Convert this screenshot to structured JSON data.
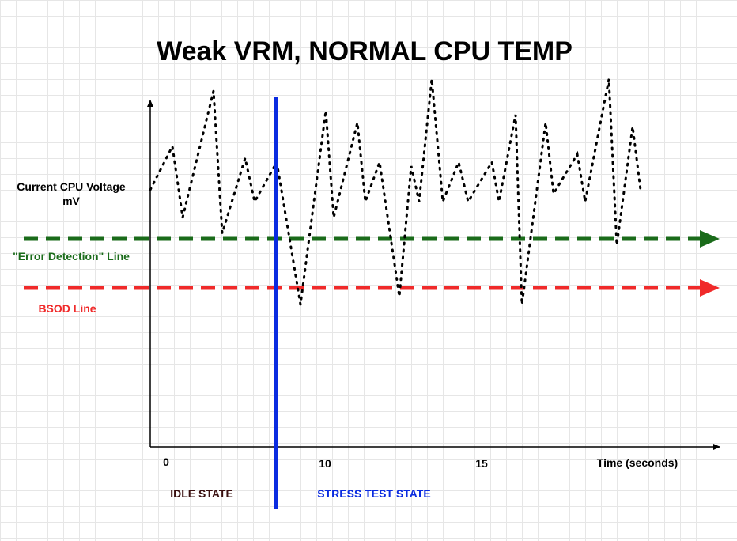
{
  "title": "Weak VRM, NORMAL CPU TEMP",
  "y_axis_label": [
    "Current CPU Voltage",
    "mV"
  ],
  "reference_lines": {
    "error_detection": "\"Error Detection\" Line",
    "bsod": "BSOD Line"
  },
  "x_axis": {
    "ticks": [
      "0",
      "10",
      "15"
    ],
    "label": "Time (seconds)"
  },
  "states": {
    "idle": "IDLE STATE",
    "stress": "STRESS TEST STATE"
  }
}
